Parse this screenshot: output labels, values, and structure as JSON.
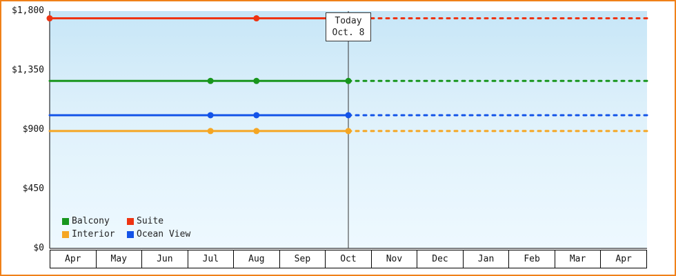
{
  "chart_data": {
    "type": "line",
    "title": "",
    "x_categories": [
      "Apr",
      "May",
      "Jun",
      "Jul",
      "Aug",
      "Sep",
      "Oct",
      "Nov",
      "Dec",
      "Jan",
      "Feb",
      "Mar",
      "Apr"
    ],
    "y_tick_labels": [
      "$0",
      "$450",
      "$900",
      "$1,350",
      "$1,800"
    ],
    "y_tick_values": [
      0,
      450,
      900,
      1350,
      1800
    ],
    "ylim": [
      0,
      1800
    ],
    "today_marker": {
      "line1": "Today",
      "line2": "Oct. 8",
      "month_index": 6
    },
    "projection_style": "solid-before-today-dashed-after",
    "series": [
      {
        "name": "Balcony",
        "color": "#18961d",
        "value": 1270,
        "marker_month_indices": [
          3,
          4,
          6
        ],
        "start_marker": false
      },
      {
        "name": "Suite",
        "color": "#ee3311",
        "value": 1745,
        "marker_month_indices": [
          4,
          6
        ],
        "start_marker": true
      },
      {
        "name": "Interior",
        "color": "#f5a623",
        "value": 890,
        "marker_month_indices": [
          3,
          4,
          6
        ],
        "start_marker": false
      },
      {
        "name": "Ocean View",
        "color": "#1353e8",
        "value": 1010,
        "marker_month_indices": [
          3,
          4,
          6
        ],
        "start_marker": false
      }
    ],
    "legend_rows": [
      [
        "Balcony",
        "Suite"
      ],
      [
        "Interior",
        "Ocean View"
      ]
    ]
  },
  "colors": {
    "outer_border": "#f08019",
    "plot_bg_top": "#c7e6f7",
    "plot_bg_bottom": "#eef9ff",
    "axis": "#000000",
    "today_line": "#333333"
  }
}
